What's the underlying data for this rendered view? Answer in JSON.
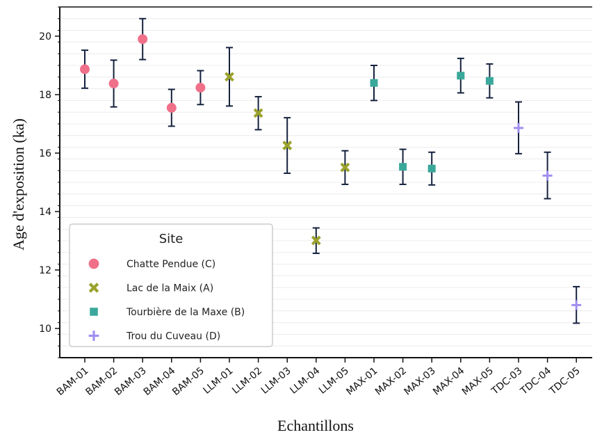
{
  "chart_data": {
    "type": "scatter",
    "title": "",
    "xlabel": "Echantillons",
    "ylabel": "Age d'exposition (ka)",
    "ylim": [
      9,
      21
    ],
    "yticks": [
      10,
      12,
      14,
      16,
      18,
      20
    ],
    "grid": "horizontal",
    "legend": {
      "title": "Site",
      "placement": "lower-left"
    },
    "categories": [
      "BAM-01",
      "BAM-02",
      "BAM-03",
      "BAM-04",
      "BAM-05",
      "LLM-01",
      "LLM-02",
      "LLM-03",
      "LLM-04",
      "LLM-05",
      "MAX-01",
      "MAX-02",
      "MAX-03",
      "MAX-04",
      "MAX-05",
      "TDC-03",
      "TDC-04",
      "TDC-05"
    ],
    "series": [
      {
        "name": "Chatte Pendue (C)",
        "marker": "circle",
        "color": "#f0708a",
        "points": [
          {
            "x": "BAM-01",
            "y": 18.87,
            "err_low": 18.22,
            "err_high": 19.52
          },
          {
            "x": "BAM-02",
            "y": 18.38,
            "err_low": 17.58,
            "err_high": 19.18
          },
          {
            "x": "BAM-03",
            "y": 19.9,
            "err_low": 19.2,
            "err_high": 20.6
          },
          {
            "x": "BAM-04",
            "y": 17.55,
            "err_low": 16.92,
            "err_high": 18.18
          },
          {
            "x": "BAM-05",
            "y": 18.24,
            "err_low": 17.66,
            "err_high": 18.82
          }
        ]
      },
      {
        "name": "Lac de la Maix (A)",
        "marker": "x",
        "color": "#9aa22c",
        "points": [
          {
            "x": "LLM-01",
            "y": 18.61,
            "err_low": 17.61,
            "err_high": 19.61
          },
          {
            "x": "LLM-02",
            "y": 17.37,
            "err_low": 16.8,
            "err_high": 17.93
          },
          {
            "x": "LLM-03",
            "y": 16.26,
            "err_low": 15.31,
            "err_high": 17.21
          },
          {
            "x": "LLM-04",
            "y": 13.01,
            "err_low": 12.57,
            "err_high": 13.44
          },
          {
            "x": "LLM-05",
            "y": 15.51,
            "err_low": 14.93,
            "err_high": 16.08
          }
        ]
      },
      {
        "name": "Tourbière de la Maxe (B)",
        "marker": "square",
        "color": "#3aa89a",
        "points": [
          {
            "x": "MAX-01",
            "y": 18.4,
            "err_low": 17.8,
            "err_high": 19.0
          },
          {
            "x": "MAX-02",
            "y": 15.53,
            "err_low": 14.93,
            "err_high": 16.13
          },
          {
            "x": "MAX-03",
            "y": 15.47,
            "err_low": 14.91,
            "err_high": 16.03
          },
          {
            "x": "MAX-04",
            "y": 18.65,
            "err_low": 18.06,
            "err_high": 19.24
          },
          {
            "x": "MAX-05",
            "y": 18.47,
            "err_low": 17.89,
            "err_high": 19.05
          }
        ]
      },
      {
        "name": "Trou du Cuveau (D)",
        "marker": "plus",
        "color": "#a08ef0",
        "points": [
          {
            "x": "TDC-03",
            "y": 16.86,
            "err_low": 15.98,
            "err_high": 17.75
          },
          {
            "x": "TDC-04",
            "y": 15.23,
            "err_low": 14.44,
            "err_high": 16.03
          },
          {
            "x": "TDC-05",
            "y": 10.8,
            "err_low": 10.18,
            "err_high": 11.43
          }
        ]
      }
    ]
  }
}
